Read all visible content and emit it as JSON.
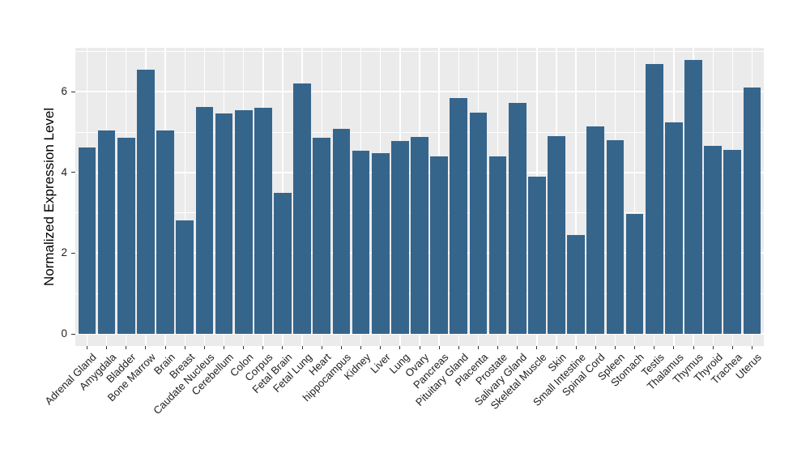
{
  "chart_data": {
    "type": "bar",
    "title": "",
    "xlabel": "",
    "ylabel": "Normalized Expression Level",
    "categories": [
      "Adrenal Gland",
      "Amygdala",
      "Bladder",
      "Bone Marrow",
      "Brain",
      "Breast",
      "Caudate Nucleus",
      "Cerebellum",
      "Colon",
      "Corpus",
      "Fetal Brain",
      "Fetal Lung",
      "Heart",
      "hippocampus",
      "Kidney",
      "Liver",
      "Lung",
      "Ovary",
      "Pancreas",
      "Pituitary Gland",
      "Placenta",
      "Prostate",
      "Salivary Gland",
      "Skeletal Muscle",
      "Skin",
      "Small Intestine",
      "Spinal Cord",
      "Spleen",
      "Stomach",
      "Testis",
      "Thalamus",
      "Thymus",
      "Thyroid",
      "Trachea",
      "Uterus"
    ],
    "values": [
      4.62,
      5.04,
      4.86,
      6.55,
      5.05,
      2.82,
      5.63,
      5.46,
      5.55,
      5.6,
      3.5,
      6.21,
      4.86,
      5.08,
      4.54,
      4.48,
      4.77,
      4.88,
      4.4,
      5.84,
      5.49,
      4.39,
      5.72,
      3.9,
      4.9,
      2.45,
      5.15,
      4.79,
      2.97,
      6.69,
      5.25,
      6.79,
      4.65,
      4.55,
      6.1
    ],
    "ylim": [
      0,
      7.08
    ],
    "yticks_major": [
      0,
      2,
      4,
      6
    ],
    "yticks_minor": [
      1,
      3,
      5,
      7
    ],
    "grid": "on",
    "legend_position": "none",
    "x_label_angle_deg": 45,
    "colors": {
      "bar": "#36658C",
      "panel_background": "#EBEBEB",
      "gridline": "#FFFFFF",
      "tick_mark": "#333333",
      "axis_text": "#212121",
      "figure_background": "#FFFFFF"
    }
  }
}
